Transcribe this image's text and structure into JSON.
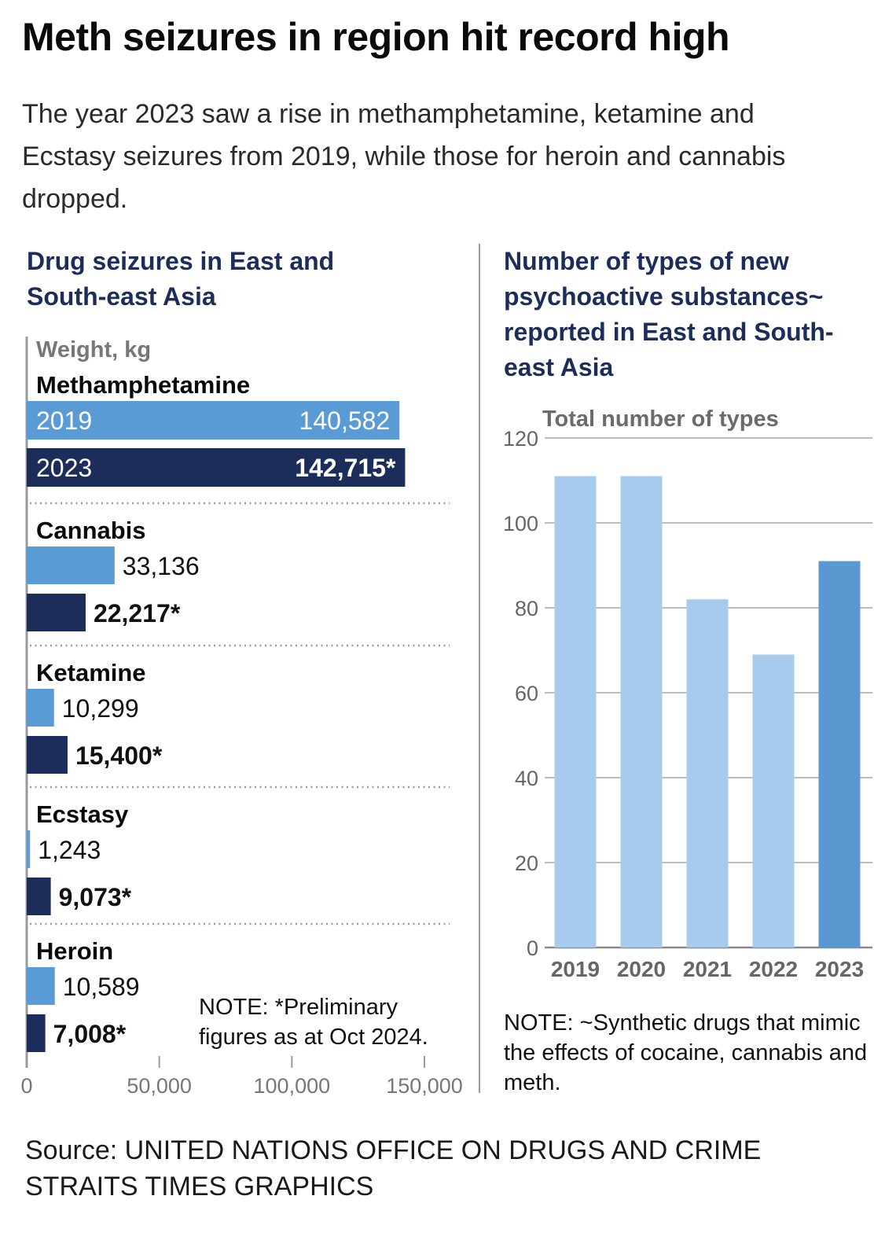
{
  "header": {
    "title": "Meth seizures in region hit record high",
    "subtitle": "The year 2023 saw a rise in methamphetamine, ketamine and Ecstasy seizures from 2019, while those for heroin and cannabis dropped."
  },
  "colors": {
    "navy": "#1c2d5a",
    "blue_2019": "#5b9bd5",
    "light_bar": "#a6cbed",
    "highlight_bar": "#5b97d0",
    "axis_gray": "#9a9a9a",
    "grid_gray": "#bdbdbd"
  },
  "chart_data": [
    {
      "type": "bar",
      "orientation": "horizontal",
      "title": "Drug seizures in East and South-east Asia",
      "unit_label": "Weight, kg",
      "xlim": [
        0,
        150000
      ],
      "x_ticks": [
        "0",
        "50,000",
        "100,000",
        "150,000"
      ],
      "x_tick_values": [
        0,
        50000,
        100000,
        150000
      ],
      "series_names": [
        "2019",
        "2023"
      ],
      "categories": [
        {
          "name": "Methamphetamine",
          "values": [
            140582,
            142715
          ],
          "labels": [
            "140,582",
            "142,715*"
          ]
        },
        {
          "name": "Cannabis",
          "values": [
            33136,
            22217
          ],
          "labels": [
            "33,136",
            "22,217*"
          ]
        },
        {
          "name": "Ketamine",
          "values": [
            10299,
            15400
          ],
          "labels": [
            "10,299",
            "15,400*"
          ]
        },
        {
          "name": "Ecstasy",
          "values": [
            1243,
            9073
          ],
          "labels": [
            "1,243",
            "9,073*"
          ]
        },
        {
          "name": "Heroin",
          "values": [
            10589,
            7008
          ],
          "labels": [
            "10,589",
            "7,008*"
          ]
        }
      ],
      "note": "NOTE: *Preliminary figures as at Oct 2024."
    },
    {
      "type": "bar",
      "orientation": "vertical",
      "title": "Number of types of new psychoactive substances~ reported in East and South-east Asia",
      "ylabel": "Total number of types",
      "ylim": [
        0,
        120
      ],
      "y_ticks": [
        0,
        20,
        40,
        60,
        80,
        100,
        120
      ],
      "grid": true,
      "categories": [
        "2019",
        "2020",
        "2021",
        "2022",
        "2023"
      ],
      "values": [
        111,
        111,
        82,
        69,
        91
      ],
      "highlight": "2023",
      "note": "NOTE: ~Synthetic drugs that mimic the effects of cocaine, cannabis and meth."
    }
  ],
  "source": {
    "line1": "Source: UNITED NATIONS OFFICE ON DRUGS AND CRIME",
    "line2": "STRAITS TIMES GRAPHICS"
  }
}
